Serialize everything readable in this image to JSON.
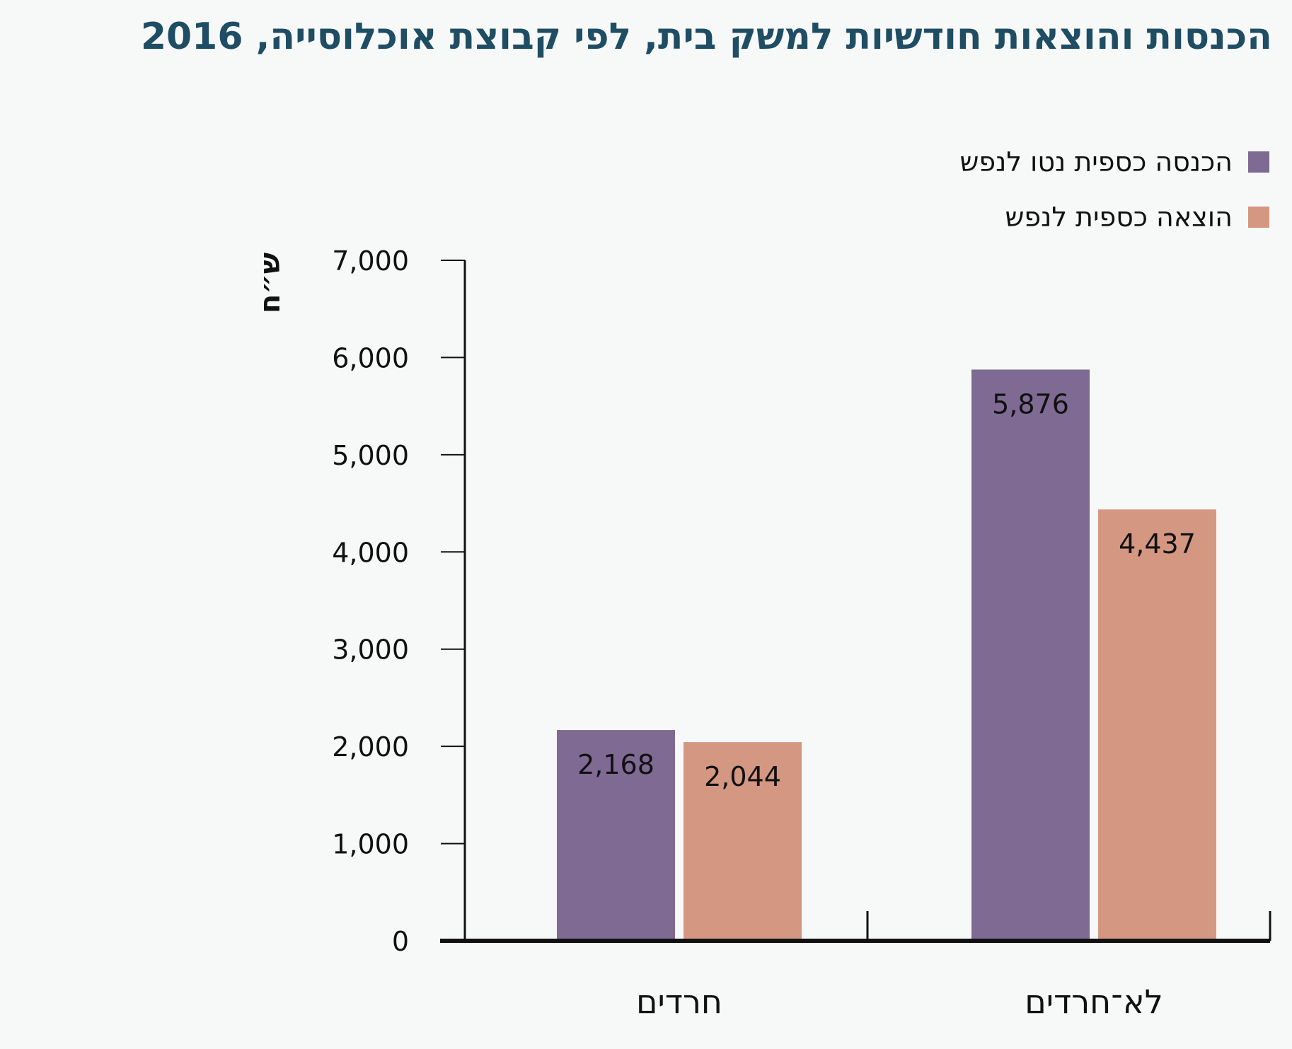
{
  "title": "הכנסות והוצאות חודשיות למשק בית, לפי קבוצת אוכלוסייה, 2016",
  "colors": {
    "income": "#7f6a94",
    "expense": "#d49782",
    "axis": "#111111",
    "title": "#1f4d63",
    "background": "#f7f8f8"
  },
  "legend": [
    {
      "label": "הכנסה כספית נטו לנפש",
      "color": "#7f6a94"
    },
    {
      "label": "הוצאה כספית לנפש",
      "color": "#d49782"
    }
  ],
  "chart_data": {
    "type": "bar",
    "categories": [
      "חרדים",
      "לא־חרדים"
    ],
    "series": [
      {
        "name": "הכנסה כספית נטו לנפש",
        "values": [
          2168,
          5876
        ],
        "labels": [
          "2,168",
          "5,876"
        ]
      },
      {
        "name": "הוצאה כספית לנפש",
        "values": [
          2044,
          4437
        ],
        "labels": [
          "2,044",
          "4,437"
        ]
      }
    ],
    "ylabel": "ש״ח",
    "ylim": [
      0,
      7000
    ],
    "yticks": [
      0,
      1000,
      2000,
      3000,
      4000,
      5000,
      6000,
      7000
    ],
    "ytick_labels": [
      "0",
      "1,000",
      "2,000",
      "3,000",
      "4,000",
      "5,000",
      "6,000",
      "7,000"
    ],
    "grid": false,
    "legend_position": "top-right"
  }
}
